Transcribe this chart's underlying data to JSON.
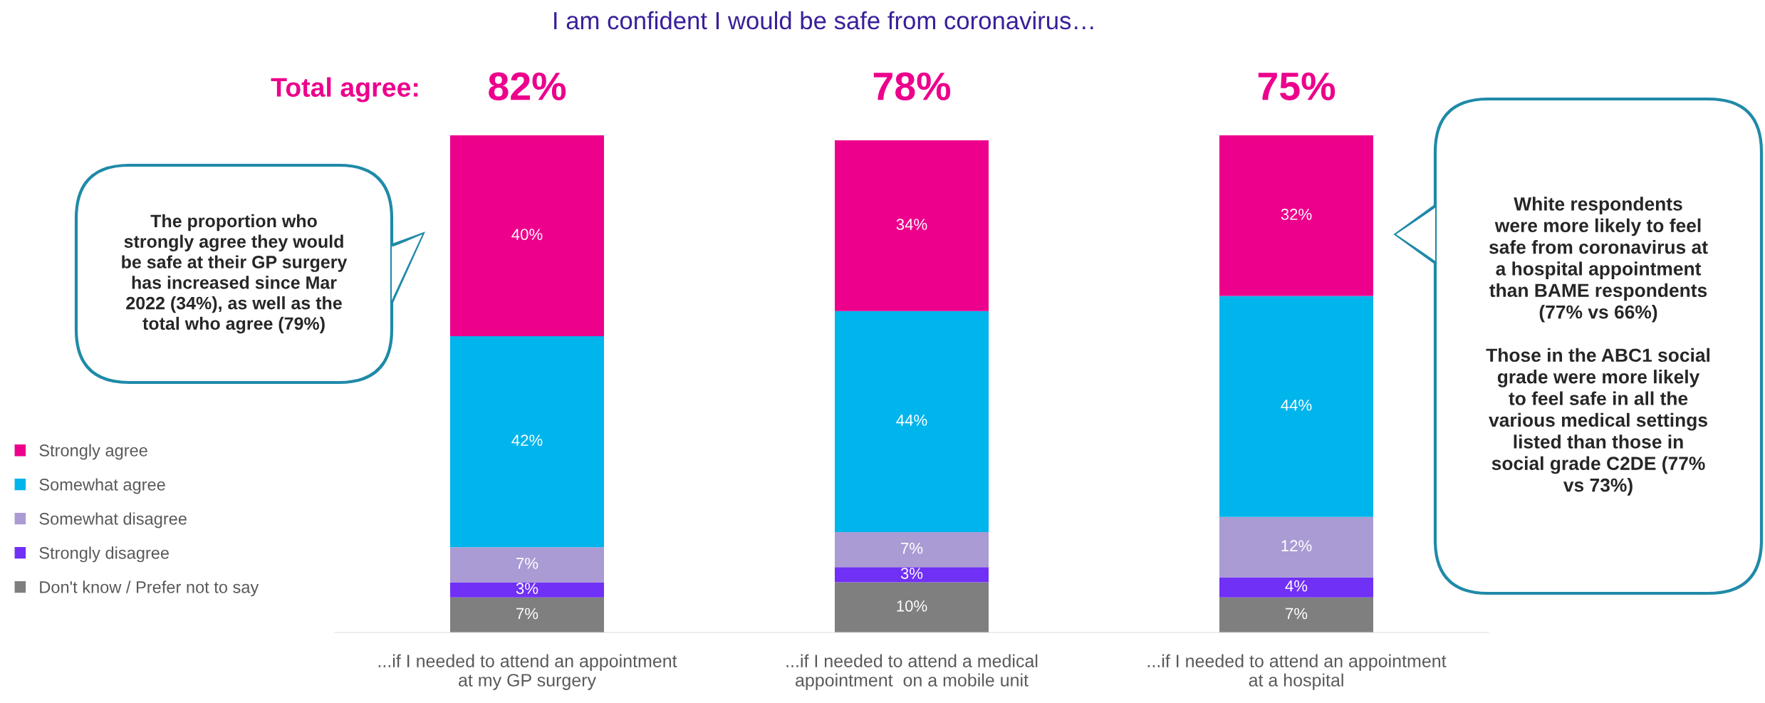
{
  "chart_data": {
    "type": "bar",
    "stacked": true,
    "legend": "left",
    "grid": false,
    "title": "I am confident I would be safe from coronavirus…",
    "categories": [
      "...if I needed to attend an appointment\nat my GP surgery",
      "...if I needed to attend a medical\nappointment  on a mobile unit",
      "...if I needed to attend an appointment\nat a hospital"
    ],
    "series": [
      {
        "name": "Don't know / Prefer not to say",
        "color": "#7f7f7f",
        "values": [
          7,
          10,
          7
        ],
        "value_labels": [
          "7%",
          "10%",
          "7%"
        ]
      },
      {
        "name": "Strongly disagree",
        "color": "#7030f5",
        "values": [
          3,
          3,
          4
        ],
        "value_labels": [
          "3%",
          "3%",
          "4%"
        ]
      },
      {
        "name": "Somewhat disagree",
        "color": "#aa9bd4",
        "values": [
          7,
          7,
          12
        ],
        "value_labels": [
          "7%",
          "7%",
          "12%"
        ]
      },
      {
        "name": "Somewhat agree",
        "color": "#00b4ec",
        "values": [
          42,
          44,
          44
        ],
        "value_labels": [
          "42%",
          "44%",
          "44%"
        ]
      },
      {
        "name": "Strongly agree",
        "color": "#ec008c",
        "values": [
          40,
          34,
          32
        ],
        "value_labels": [
          "40%",
          "34%",
          "32%"
        ]
      }
    ],
    "annotations": [
      "Total agree:",
      "82%",
      "78%",
      "75%",
      "The proportion who\nstrongly agree they would\nbe safe at their GP surgery\nhas increased since Mar\n2022 (34%), as well as the\ntotal who agree (79%)",
      "White respondents\nwere more likely to feel\nsafe from coronavirus at\na hospital appointment\nthan BAME respondents\n(77% vs 66%)\n\nThose in the ABC1 social\ngrade were more likely\nto feel safe in all the\nvarious medical settings\nlisted than those in\nsocial grade C2DE (77%\nvs 73%)"
    ]
  }
}
